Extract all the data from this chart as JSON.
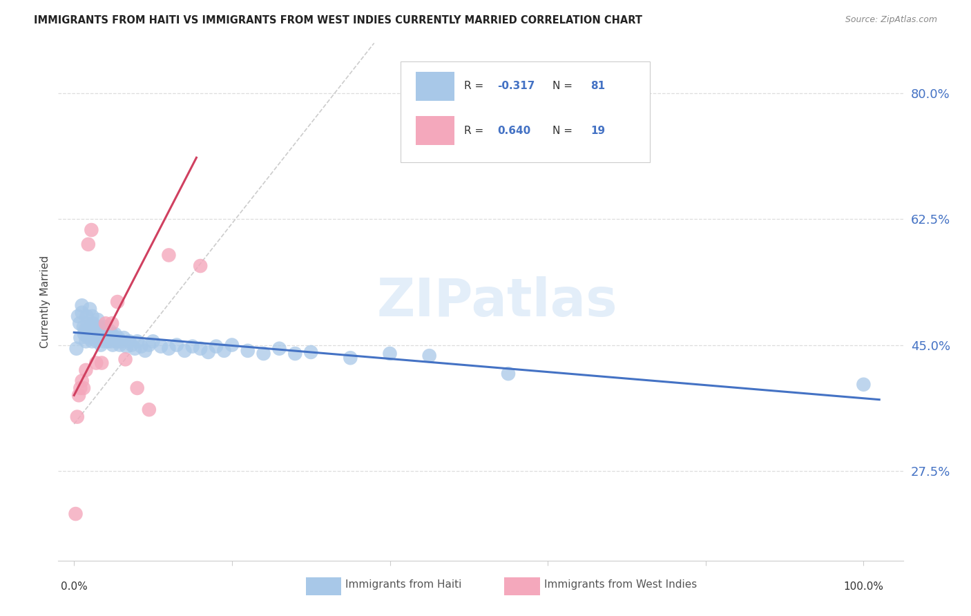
{
  "title": "IMMIGRANTS FROM HAITI VS IMMIGRANTS FROM WEST INDIES CURRENTLY MARRIED CORRELATION CHART",
  "source": "Source: ZipAtlas.com",
  "ylabel": "Currently Married",
  "ylim": [
    0.15,
    0.87
  ],
  "xlim": [
    -0.02,
    1.05
  ],
  "watermark": "ZIPatlas",
  "haiti_R": -0.317,
  "haiti_N": 81,
  "wi_R": 0.64,
  "wi_N": 19,
  "haiti_color": "#a8c8e8",
  "wi_color": "#f4a8bc",
  "haiti_line_color": "#4472c4",
  "wi_line_color": "#d04060",
  "legend_R_color": "#4472c4",
  "dashed_line_color": "#cccccc",
  "y_tick_positions": [
    0.275,
    0.45,
    0.625,
    0.8
  ],
  "y_tick_labels": [
    "27.5%",
    "45.0%",
    "62.5%",
    "80.0%"
  ],
  "grid_color": "#dddddd",
  "background_color": "#ffffff",
  "haiti_x": [
    0.003,
    0.005,
    0.007,
    0.008,
    0.01,
    0.01,
    0.012,
    0.013,
    0.014,
    0.015,
    0.016,
    0.017,
    0.018,
    0.019,
    0.02,
    0.021,
    0.022,
    0.023,
    0.023,
    0.024,
    0.025,
    0.026,
    0.027,
    0.028,
    0.029,
    0.03,
    0.031,
    0.032,
    0.033,
    0.034,
    0.035,
    0.036,
    0.037,
    0.038,
    0.039,
    0.04,
    0.041,
    0.042,
    0.043,
    0.044,
    0.045,
    0.046,
    0.047,
    0.048,
    0.049,
    0.05,
    0.052,
    0.054,
    0.056,
    0.058,
    0.06,
    0.063,
    0.066,
    0.07,
    0.073,
    0.077,
    0.08,
    0.085,
    0.09,
    0.095,
    0.1,
    0.11,
    0.12,
    0.13,
    0.14,
    0.15,
    0.16,
    0.17,
    0.18,
    0.19,
    0.2,
    0.22,
    0.24,
    0.26,
    0.28,
    0.3,
    0.35,
    0.4,
    0.45,
    0.55,
    1.0
  ],
  "haiti_y": [
    0.445,
    0.49,
    0.48,
    0.46,
    0.505,
    0.495,
    0.475,
    0.465,
    0.47,
    0.455,
    0.49,
    0.48,
    0.46,
    0.47,
    0.5,
    0.475,
    0.465,
    0.49,
    0.455,
    0.48,
    0.47,
    0.46,
    0.475,
    0.465,
    0.455,
    0.485,
    0.47,
    0.46,
    0.475,
    0.45,
    0.465,
    0.46,
    0.47,
    0.455,
    0.465,
    0.475,
    0.46,
    0.47,
    0.455,
    0.465,
    0.47,
    0.46,
    0.455,
    0.465,
    0.45,
    0.46,
    0.465,
    0.455,
    0.46,
    0.45,
    0.455,
    0.46,
    0.448,
    0.455,
    0.45,
    0.445,
    0.455,
    0.448,
    0.442,
    0.45,
    0.455,
    0.448,
    0.445,
    0.45,
    0.442,
    0.448,
    0.445,
    0.44,
    0.448,
    0.442,
    0.45,
    0.442,
    0.438,
    0.445,
    0.438,
    0.44,
    0.432,
    0.438,
    0.435,
    0.41,
    0.395
  ],
  "wi_x": [
    0.002,
    0.004,
    0.006,
    0.008,
    0.01,
    0.012,
    0.015,
    0.018,
    0.022,
    0.028,
    0.035,
    0.04,
    0.048,
    0.055,
    0.065,
    0.08,
    0.095,
    0.12,
    0.16
  ],
  "wi_y": [
    0.215,
    0.35,
    0.38,
    0.39,
    0.4,
    0.39,
    0.415,
    0.59,
    0.61,
    0.425,
    0.425,
    0.48,
    0.48,
    0.51,
    0.43,
    0.39,
    0.36,
    0.575,
    0.56
  ]
}
